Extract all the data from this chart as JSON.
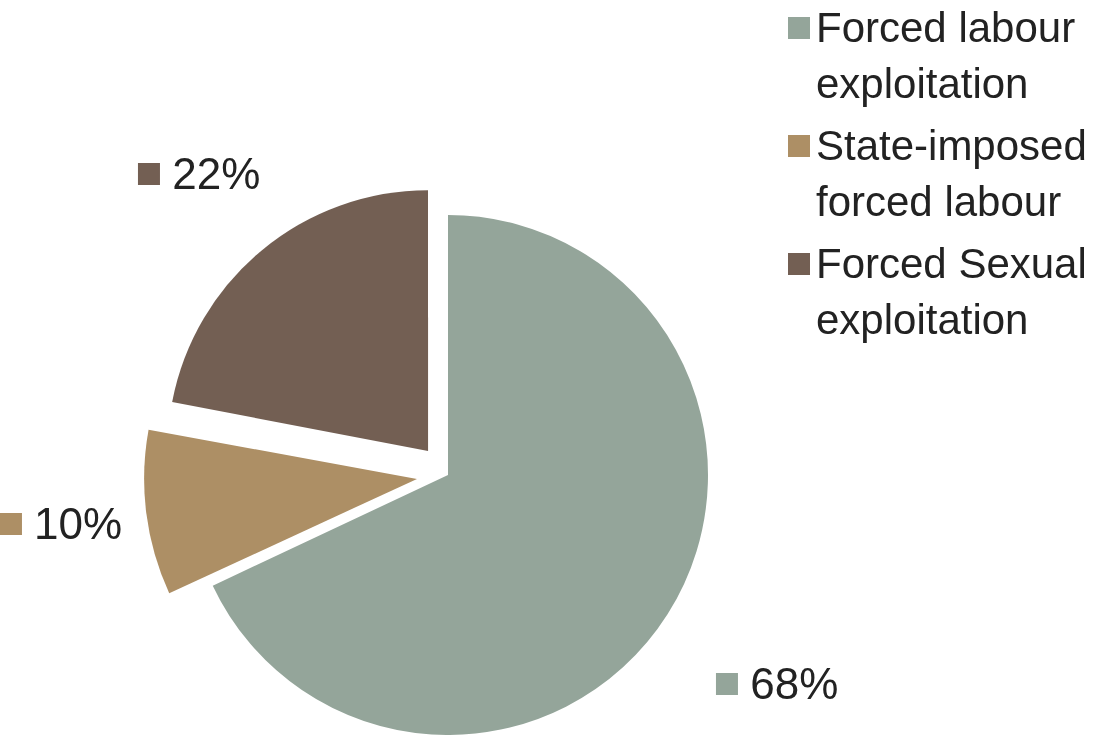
{
  "chart_data": {
    "type": "pie",
    "categories": [
      "Forced labour exploitation",
      "State-imposed forced labour",
      "Forced Sexual exploitation"
    ],
    "values": [
      68,
      10,
      22
    ],
    "colors": [
      "#94a59a",
      "#ad8f65",
      "#735f53"
    ],
    "value_labels": [
      "68%",
      "10%",
      "22%"
    ],
    "legend": "top right"
  }
}
